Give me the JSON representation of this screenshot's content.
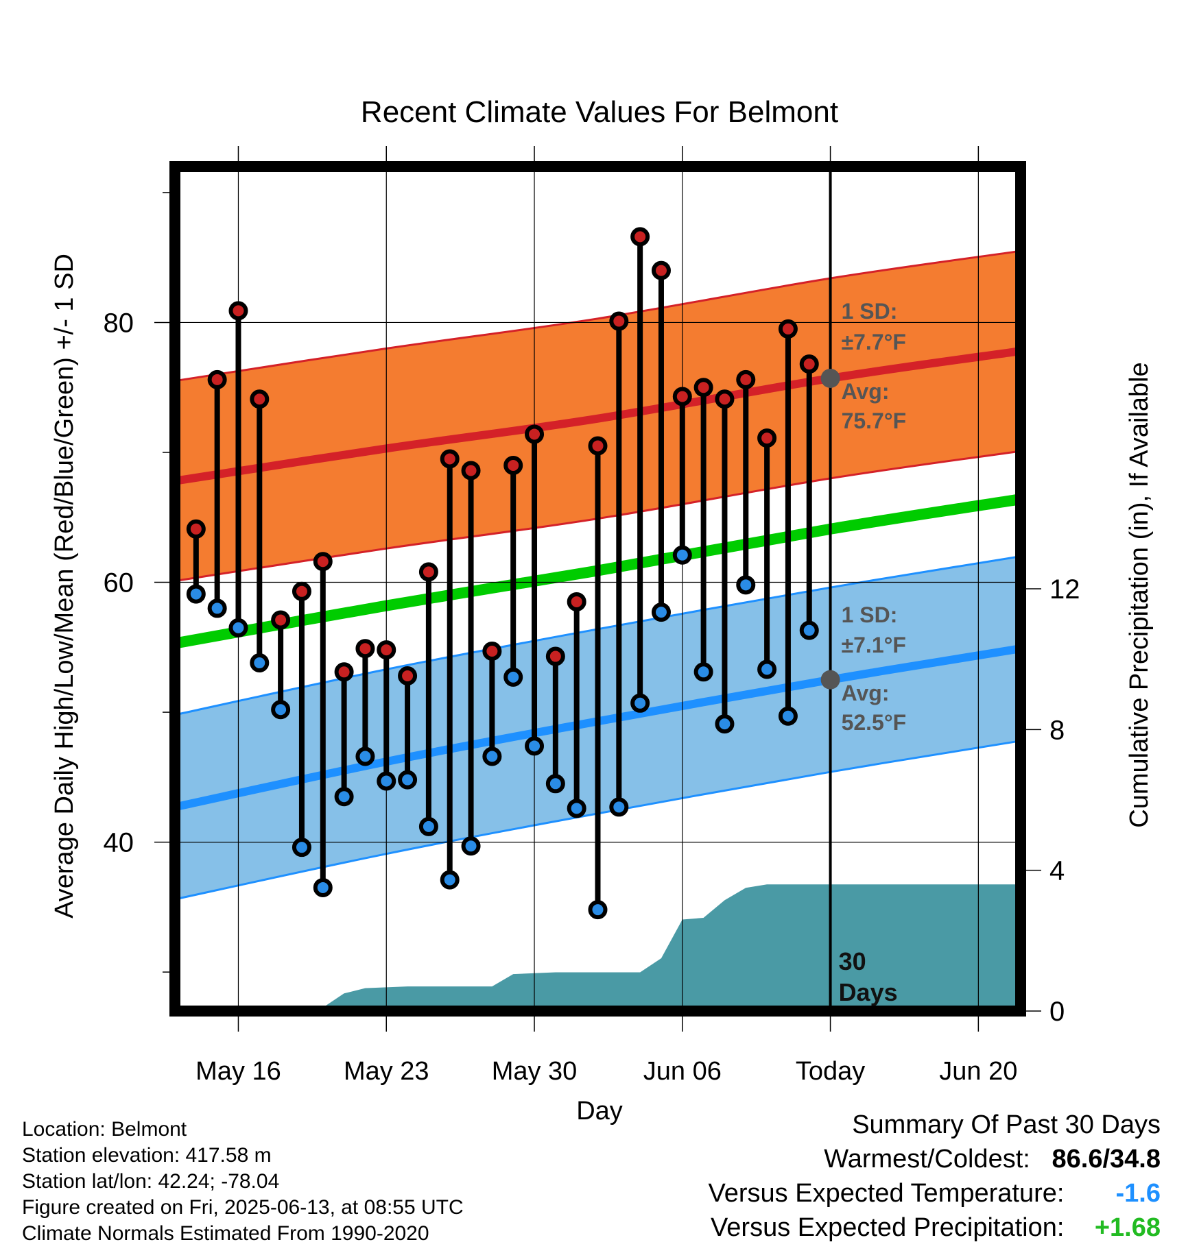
{
  "chart_data": {
    "type": "line",
    "title": "Recent Climate Values For Belmont",
    "xlabel": "Day",
    "ylabel_left": "Average Daily High/Low/Mean (Red/Blue/Green) +/- 1 SD",
    "ylabel_right": "Cumulative Precipitation (in), If Available",
    "x_tick_labels": [
      "May 16",
      "May 23",
      "May 30",
      "Jun 06",
      "Today",
      "Jun 20"
    ],
    "x_range": [
      "2025-05-13",
      "2025-06-22"
    ],
    "today": "2025-06-13",
    "ylim_left": [
      27,
      92
    ],
    "y_ticks_left": [
      40,
      60,
      80
    ],
    "ylim_right": [
      0,
      24
    ],
    "y_ticks_right": [
      0,
      4,
      8,
      12
    ],
    "grid": true,
    "daily_dates": [
      "2025-05-14",
      "2025-05-15",
      "2025-05-16",
      "2025-05-17",
      "2025-05-18",
      "2025-05-19",
      "2025-05-20",
      "2025-05-21",
      "2025-05-22",
      "2025-05-23",
      "2025-05-24",
      "2025-05-25",
      "2025-05-26",
      "2025-05-27",
      "2025-05-28",
      "2025-05-29",
      "2025-05-30",
      "2025-05-31",
      "2025-06-01",
      "2025-06-02",
      "2025-06-03",
      "2025-06-04",
      "2025-06-05",
      "2025-06-06",
      "2025-06-07",
      "2025-06-08",
      "2025-06-09",
      "2025-06-10",
      "2025-06-11",
      "2025-06-12"
    ],
    "daily_high": [
      64.1,
      75.6,
      80.9,
      74.1,
      57.1,
      59.3,
      61.6,
      53.1,
      54.9,
      54.8,
      52.8,
      60.8,
      69.5,
      68.6,
      54.7,
      69.0,
      71.4,
      54.3,
      58.5,
      70.5,
      80.1,
      86.6,
      84.0,
      74.3,
      75.0,
      74.1,
      75.6,
      71.1,
      79.5,
      76.8
    ],
    "daily_low": [
      59.1,
      58.0,
      56.5,
      53.8,
      50.2,
      39.6,
      36.5,
      43.5,
      46.6,
      44.7,
      44.8,
      41.2,
      37.1,
      39.7,
      46.6,
      52.7,
      47.4,
      44.5,
      42.6,
      34.8,
      42.7,
      50.7,
      57.7,
      62.1,
      53.1,
      49.1,
      59.8,
      53.3,
      49.7,
      56.3
    ],
    "normals_dates": [
      "2025-05-13",
      "2025-05-23",
      "2025-06-02",
      "2025-06-13",
      "2025-06-22"
    ],
    "normal_high": [
      67.8,
      70.3,
      72.6,
      75.7,
      77.8
    ],
    "normal_high_sd": 7.7,
    "normal_low": [
      42.7,
      46.2,
      49.3,
      52.5,
      54.9
    ],
    "normal_low_sd": 7.1,
    "normal_mean": [
      55.3,
      58.2,
      60.9,
      64.1,
      66.4
    ],
    "precip_dates": [
      "2025-05-13",
      "2025-05-16",
      "2025-05-17",
      "2025-05-20",
      "2025-05-21",
      "2025-05-22",
      "2025-05-24",
      "2025-05-28",
      "2025-05-29",
      "2025-05-31",
      "2025-06-04",
      "2025-06-05",
      "2025-06-06",
      "2025-06-07",
      "2025-06-08",
      "2025-06-09",
      "2025-06-10",
      "2025-06-22"
    ],
    "precip_cum": [
      0.0,
      0.0,
      0.1,
      0.1,
      0.5,
      0.65,
      0.7,
      0.7,
      1.05,
      1.1,
      1.1,
      1.5,
      2.6,
      2.65,
      3.15,
      3.5,
      3.6,
      3.6
    ],
    "annotations": {
      "high_sd_label": "1 SD:",
      "high_sd_value": "±7.7°F",
      "high_avg_label": "Avg:",
      "high_avg_value": "75.7°F",
      "low_sd_label": "1 SD:",
      "low_sd_value": "±7.1°F",
      "low_avg_label": "Avg:",
      "low_avg_value": "52.5°F",
      "window_line1": "30",
      "window_line2": "Days"
    }
  },
  "colors": {
    "high_band": "#f47c30",
    "high_line": "#d42128",
    "low_band": "#86c0e8",
    "low_line": "#1e90ff",
    "mean_line": "#00cc00",
    "precip": "#4a9aa5",
    "high_dot": "#c82121",
    "low_dot": "#2a8ce6",
    "annotation": "#555555",
    "cold": "#1e90ff",
    "wet": "#22bb22"
  },
  "info": {
    "location": "Location: Belmont",
    "elevation": "Station elevation: 417.58 m",
    "latlon": "Station lat/lon: 42.24; -78.04",
    "created": "Figure created on Fri, 2025-06-13, at 08:55 UTC",
    "normals": "Climate Normals Estimated From 1990-2020"
  },
  "summary": {
    "title": "Summary Of Past 30 Days",
    "warmest_label": "Warmest/Coldest:",
    "warmest_value": "86.6/34.8",
    "temp_label": "Versus Expected Temperature:",
    "temp_value": "-1.6",
    "precip_label": "Versus Expected Precipitation:",
    "precip_value": "+1.68"
  }
}
